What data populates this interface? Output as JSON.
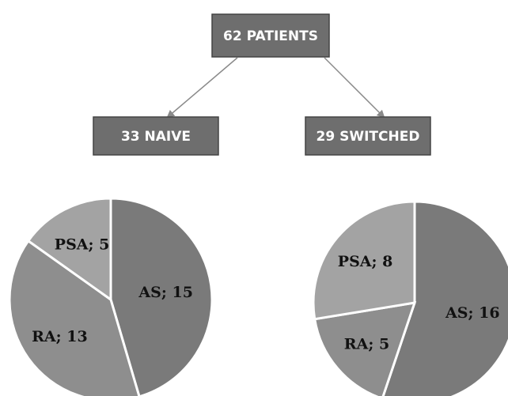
{
  "flow": {
    "root": "62 PATIENTS",
    "children": [
      "33 NAIVE",
      "29 SWITCHED"
    ]
  },
  "colors": {
    "box_fill": "#6e6e6e",
    "box_border": "#444444",
    "arrow": "#8a8a8a",
    "slice_dark": "#7a7a7a",
    "slice_mid": "#8e8e8e",
    "slice_light": "#a3a3a3",
    "slice_edge": "#ffffff"
  },
  "chart_data": [
    {
      "type": "pie",
      "title": "",
      "slices": [
        {
          "label": "AS; 15",
          "category": "AS",
          "value": 15,
          "color": "#7a7a7a"
        },
        {
          "label": "RA; 13",
          "category": "RA",
          "value": 13,
          "color": "#8e8e8e"
        },
        {
          "label": "PSA; 5",
          "category": "PSA",
          "value": 5,
          "color": "#a3a3a3"
        }
      ]
    },
    {
      "type": "pie",
      "title": "",
      "slices": [
        {
          "label": "AS; 16",
          "category": "AS",
          "value": 16,
          "color": "#7a7a7a"
        },
        {
          "label": "RA; 5",
          "category": "RA",
          "value": 5,
          "color": "#8e8e8e"
        },
        {
          "label": "PSA; 8",
          "category": "PSA",
          "value": 8,
          "color": "#a3a3a3"
        }
      ]
    }
  ]
}
